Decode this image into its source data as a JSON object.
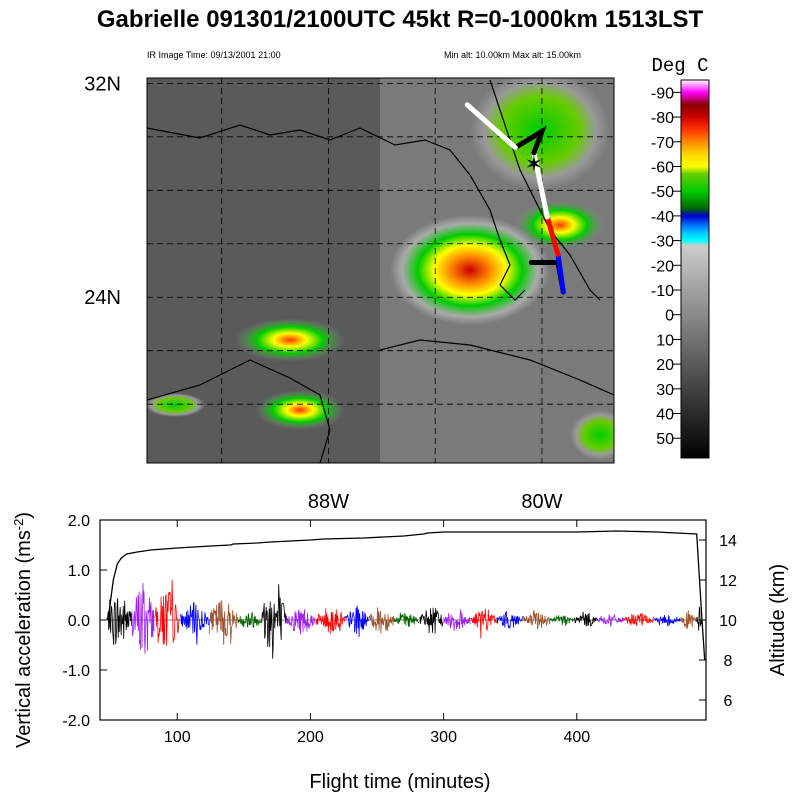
{
  "title": "Gabrielle 091301/2100UTC 45kt  R=0-1000km 1513LST",
  "ir_time": "IR Image Time: 09/13/2001 21:00",
  "alt_info": "Min alt: 10.00km  Max alt: 15.00km",
  "colorbar": {
    "title": "Deg C",
    "labels": [
      "-90",
      "-80",
      "-70",
      "-60",
      "-50",
      "-40",
      "-30",
      "-20",
      "-10",
      "0",
      "10",
      "20",
      "30",
      "40",
      "50"
    ],
    "stops": [
      {
        "t": -95,
        "color": "#ffffff"
      },
      {
        "t": -90,
        "color": "#ff00ff"
      },
      {
        "t": -85,
        "color": "#8b0000"
      },
      {
        "t": -80,
        "color": "#cc0000"
      },
      {
        "t": -75,
        "color": "#ff3300"
      },
      {
        "t": -70,
        "color": "#ff8800"
      },
      {
        "t": -65,
        "color": "#ffd700"
      },
      {
        "t": -60,
        "color": "#ffff00"
      },
      {
        "t": -57,
        "color": "#66cc00"
      },
      {
        "t": -50,
        "color": "#00cc00"
      },
      {
        "t": -43,
        "color": "#006600"
      },
      {
        "t": -40,
        "color": "#0000cc"
      },
      {
        "t": -36,
        "color": "#0077ff"
      },
      {
        "t": -33,
        "color": "#00ccff"
      },
      {
        "t": -30,
        "color": "#00ffff"
      },
      {
        "t": -28,
        "color": "#cccccc"
      },
      {
        "t": 58,
        "color": "#000000"
      }
    ]
  },
  "map": {
    "lat_labels": [
      {
        "text": "32N",
        "lat": 32
      },
      {
        "text": "24N",
        "lat": 24
      }
    ],
    "lon_labels": [
      {
        "text": "88W",
        "lon": -88
      },
      {
        "text": "80W",
        "lon": -80
      }
    ],
    "lat_range": [
      17.8,
      32.2
    ],
    "lon_range": [
      -94.8,
      -77.3
    ],
    "grid_lats": [
      20,
      22,
      24,
      26,
      28,
      30,
      32
    ],
    "grid_lons": [
      -92,
      -88,
      -84,
      -80
    ],
    "storm_center": {
      "lat": 29.0,
      "lon": -80.3
    }
  },
  "flight_track": [
    {
      "color": "#000000",
      "points": [
        [
          -80.4,
          25.3
        ],
        [
          -80.0,
          25.3
        ],
        [
          -79.4,
          25.3
        ],
        [
          -79.2,
          24.2
        ]
      ]
    },
    {
      "color": "#0000ff",
      "points": [
        [
          -79.2,
          24.2
        ],
        [
          -79.4,
          25.6
        ]
      ]
    },
    {
      "color": "#ff0000",
      "points": [
        [
          -79.4,
          25.6
        ],
        [
          -79.8,
          27.0
        ]
      ]
    },
    {
      "color": "#ffffff",
      "points": [
        [
          -79.8,
          27.0
        ],
        [
          -80.3,
          29.4
        ]
      ]
    },
    {
      "color": "#000000",
      "points": [
        [
          -80.3,
          29.4
        ],
        [
          -80.0,
          30.2
        ],
        [
          -81.0,
          29.6
        ]
      ]
    },
    {
      "color": "#ffffff",
      "points": [
        [
          -81.0,
          29.6
        ],
        [
          -82.8,
          31.2
        ]
      ]
    }
  ],
  "chart_data": {
    "type": "line",
    "xlabel": "Flight time (minutes)",
    "ylabel": "Vertical acceleration (ms-2)",
    "y2label": "Altitude (km)",
    "xlim": [
      42,
      497
    ],
    "ylim": [
      -2.0,
      2.0
    ],
    "y2lim": [
      5,
      15
    ],
    "xticks": [
      100,
      200,
      300,
      400
    ],
    "yticks": [
      "2.0",
      "1.0",
      "0.0",
      "-1.0",
      "-2.0"
    ],
    "ytick_values": [
      2.0,
      1.0,
      0.0,
      -1.0,
      -2.0
    ],
    "y2ticks": [
      6,
      8,
      10,
      12,
      14
    ],
    "altitude_series": {
      "name": "Altitude",
      "x": [
        48,
        52,
        55,
        58,
        62,
        70,
        80,
        100,
        125,
        140,
        142,
        160,
        170,
        185,
        200,
        210,
        240,
        270,
        285,
        288,
        300,
        330,
        360,
        400,
        430,
        460,
        490,
        494,
        496
      ],
      "y": [
        10.0,
        12.0,
        12.8,
        13.1,
        13.3,
        13.4,
        13.5,
        13.6,
        13.7,
        13.75,
        13.8,
        13.85,
        13.9,
        13.95,
        14.0,
        14.05,
        14.1,
        14.2,
        14.3,
        14.35,
        14.4,
        14.4,
        14.4,
        14.4,
        14.45,
        14.4,
        14.3,
        10.0,
        8.0
      ]
    },
    "acceleration_segments": [
      {
        "color": "#000000",
        "x_start": 47,
        "x_end": 66,
        "amplitude": 0.6
      },
      {
        "color": "#a020f0",
        "x_start": 66,
        "x_end": 83,
        "amplitude": 0.9
      },
      {
        "color": "#ff0000",
        "x_start": 83,
        "x_end": 102,
        "amplitude": 0.7
      },
      {
        "color": "#0000ff",
        "x_start": 102,
        "x_end": 124,
        "amplitude": 0.35
      },
      {
        "color": "#a0522d",
        "x_start": 124,
        "x_end": 145,
        "amplitude": 0.5
      },
      {
        "color": "#006400",
        "x_start": 145,
        "x_end": 163,
        "amplitude": 0.2
      },
      {
        "color": "#000000",
        "x_start": 163,
        "x_end": 182,
        "amplitude": 0.8
      },
      {
        "color": "#a020f0",
        "x_start": 182,
        "x_end": 204,
        "amplitude": 0.3
      },
      {
        "color": "#ff0000",
        "x_start": 204,
        "x_end": 226,
        "amplitude": 0.3
      },
      {
        "color": "#0000ff",
        "x_start": 226,
        "x_end": 244,
        "amplitude": 0.3
      },
      {
        "color": "#a0522d",
        "x_start": 244,
        "x_end": 263,
        "amplitude": 0.3
      },
      {
        "color": "#006400",
        "x_start": 263,
        "x_end": 282,
        "amplitude": 0.15
      },
      {
        "color": "#000000",
        "x_start": 282,
        "x_end": 300,
        "amplitude": 0.3
      },
      {
        "color": "#a020f0",
        "x_start": 300,
        "x_end": 320,
        "amplitude": 0.25
      },
      {
        "color": "#ff0000",
        "x_start": 320,
        "x_end": 340,
        "amplitude": 0.25
      },
      {
        "color": "#0000ff",
        "x_start": 340,
        "x_end": 360,
        "amplitude": 0.2
      },
      {
        "color": "#a0522d",
        "x_start": 360,
        "x_end": 380,
        "amplitude": 0.2
      },
      {
        "color": "#006400",
        "x_start": 380,
        "x_end": 398,
        "amplitude": 0.12
      },
      {
        "color": "#000000",
        "x_start": 398,
        "x_end": 416,
        "amplitude": 0.15
      },
      {
        "color": "#a020f0",
        "x_start": 416,
        "x_end": 436,
        "amplitude": 0.12
      },
      {
        "color": "#ff0000",
        "x_start": 436,
        "x_end": 458,
        "amplitude": 0.15
      },
      {
        "color": "#0000ff",
        "x_start": 458,
        "x_end": 478,
        "amplitude": 0.12
      },
      {
        "color": "#a0522d",
        "x_start": 478,
        "x_end": 490,
        "amplitude": 0.2
      },
      {
        "color": "#000000",
        "x_start": 490,
        "x_end": 494,
        "amplitude": 0.3
      }
    ]
  }
}
